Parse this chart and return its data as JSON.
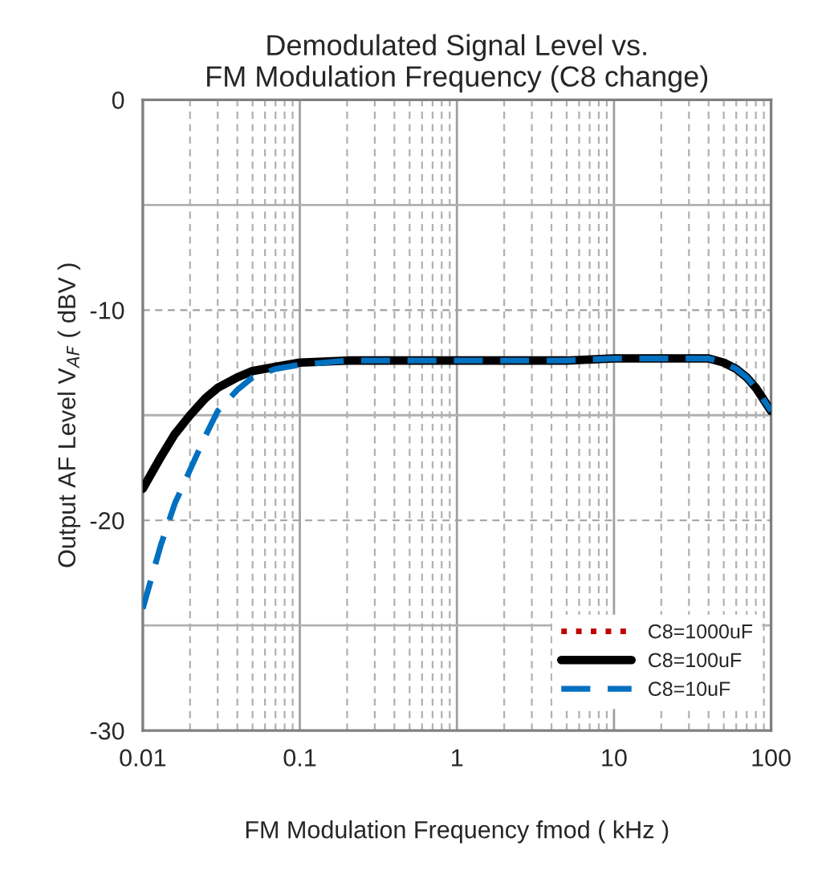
{
  "chart_data": {
    "type": "line",
    "title": "Demodulated Signal Level vs.\nFM Modulation Frequency (C8 change)",
    "xlabel": "FM Modulation Frequency fmod ( kHz )",
    "ylabel": "Output AF Level V$_{AF}$ ( dBV )",
    "log": "x",
    "xlim": [
      0.01,
      100
    ],
    "xticks": [
      0.01,
      0.1,
      1,
      10,
      100
    ],
    "ylim": [
      -30,
      0
    ],
    "yticks": [
      -30,
      -20,
      -10,
      0
    ],
    "grid": true,
    "legend": "bottom right",
    "x": [
      0.01,
      0.013,
      0.016,
      0.02,
      0.025,
      0.03,
      0.04,
      0.05,
      0.07,
      0.1,
      0.2,
      0.5,
      1,
      2,
      5,
      10,
      20,
      40,
      50,
      60,
      70,
      80,
      100
    ],
    "series": [
      {
        "name": "C8=1000uF",
        "color": "#c00000",
        "line_style": "dotted",
        "values": [
          null,
          null,
          null,
          null,
          null,
          null,
          null,
          null,
          null,
          null,
          null,
          null,
          null,
          null,
          null,
          null,
          null,
          null,
          null,
          null,
          null,
          null,
          null
        ]
      },
      {
        "name": "C8=100uF",
        "color": "#000000",
        "line_style": "solid",
        "values": [
          -18.5,
          -17.0,
          -15.9,
          -15.0,
          -14.2,
          -13.7,
          -13.2,
          -12.9,
          -12.7,
          -12.5,
          -12.4,
          -12.4,
          -12.4,
          -12.4,
          -12.4,
          -12.3,
          -12.3,
          -12.3,
          -12.5,
          -12.8,
          -13.2,
          -13.7,
          -14.8
        ]
      },
      {
        "name": "C8=10uF",
        "color": "#0070c0",
        "line_style": "dashed",
        "values": [
          -24.2,
          -21.2,
          -19.2,
          -17.6,
          -16.0,
          -14.8,
          -13.8,
          -13.2,
          -12.8,
          -12.6,
          -12.4,
          -12.4,
          -12.4,
          -12.4,
          -12.4,
          -12.3,
          -12.3,
          -12.3,
          -12.5,
          -12.8,
          -13.2,
          -13.7,
          -14.8
        ]
      }
    ]
  }
}
